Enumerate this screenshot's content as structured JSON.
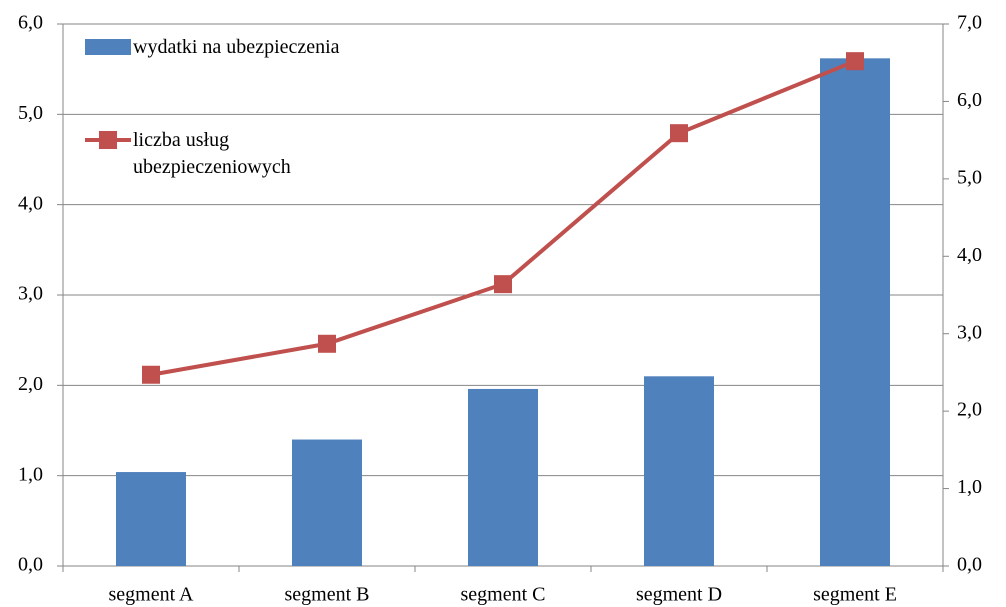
{
  "chart_data": {
    "type": "bar-line",
    "categories": [
      "segment A",
      "segment B",
      "segment C",
      "segment D",
      "segment E"
    ],
    "series": [
      {
        "name": "wydatki na ubezpieczenia",
        "color": "#4f81bd",
        "type": "bar",
        "values": [
          1.04,
          1.4,
          1.96,
          2.1,
          5.62
        ]
      },
      {
        "name": "liczba usług ubezpieczeniowych",
        "color": "#c0504d",
        "type": "line",
        "axis": "y2",
        "values": [
          2.47,
          2.87,
          3.64,
          5.59,
          6.52
        ]
      }
    ],
    "ylim": [
      0,
      6
    ],
    "yticks": [
      {
        "value": 0,
        "label": "0,0"
      },
      {
        "value": 1,
        "label": "1,0"
      },
      {
        "value": 2,
        "label": "2,0"
      },
      {
        "value": 3,
        "label": "3,0"
      },
      {
        "value": 4,
        "label": "4,0"
      },
      {
        "value": 5,
        "label": "5,0"
      },
      {
        "value": 6,
        "label": "6,0"
      }
    ],
    "y2lim": [
      0,
      7
    ],
    "y2ticks": [
      {
        "value": 0,
        "label": "0,0"
      },
      {
        "value": 1,
        "label": "1,0"
      },
      {
        "value": 2,
        "label": "2,0"
      },
      {
        "value": 3,
        "label": "3,0"
      },
      {
        "value": 4,
        "label": "4,0"
      },
      {
        "value": 5,
        "label": "5,0"
      },
      {
        "value": 6,
        "label": "6,0"
      },
      {
        "value": 7,
        "label": "7,0"
      }
    ],
    "grid": true
  }
}
